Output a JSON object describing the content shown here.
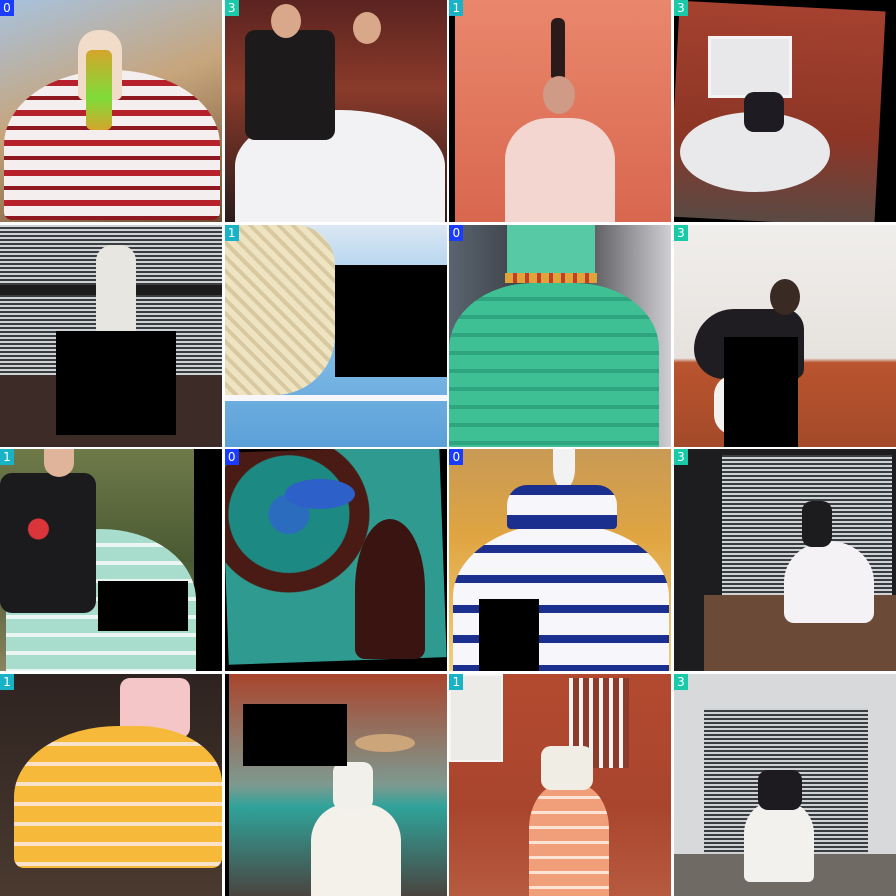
{
  "label_colors": {
    "0": "#1a3cff",
    "1": "#19b3c8",
    "3": "#19c9a8"
  },
  "tiles": [
    {
      "label": "0",
      "scene": "Dancer in red and white pollera with gold jewelry in front of a stone tower",
      "bg": "#c9a27a",
      "outfit": "#b7212b",
      "skirt": "#f4eeee",
      "mask": null
    },
    {
      "label": "3",
      "scene": "Group of dancers in white skirts and black shawls on stage",
      "bg": "#6b2a22",
      "outfit": "#1d1a1c",
      "skirt": "#f2f2f4",
      "mask": null
    },
    {
      "label": "1",
      "scene": "Dancer balancing a bottle on her head, white lace dress, pink background",
      "bg": "#e27a60",
      "outfit": "#f3d6d0",
      "skirt": "#f1e3e0",
      "mask": null
    },
    {
      "label": "3",
      "scene": "Blurred twirling dancer in white skirt against red brick wall",
      "bg": "#9d3b2c",
      "outfit": "#1e1c22",
      "skirt": "#e9e9ec",
      "mask": null
    },
    {
      "label": "",
      "scene": "Dancer indoors behind striped window blinds",
      "bg": "#3a3b3c",
      "outfit": "#f0efe8",
      "skirt": "#e8e6e0",
      "mask": "bottom-center"
    },
    {
      "label": "1",
      "scene": "Close-up of light blue skirt with cream fringed shawl",
      "bg": "#7fb6e2",
      "outfit": "#efe4c2",
      "skirt": "#8ec4ec",
      "mask": "top-right"
    },
    {
      "label": "0",
      "scene": "Green lace dress with striped belt on display",
      "bg": "#2f2f34",
      "outfit": "#3fbf94",
      "skirt": "#39b88d",
      "mask": null
    },
    {
      "label": "3",
      "scene": "Dancer with flower in hair and black shawl, white wall",
      "bg": "#ece9e6",
      "outfit": "#1f1d22",
      "skirt": "#f4f2f0",
      "mask": "bottom-center"
    },
    {
      "label": "1",
      "scene": "Dancer with embroidered black shawl and mint green skirt in garden",
      "bg": "#5a6b3a",
      "outfit": "#1b1a1c",
      "skirt": "#a8dccd",
      "mask": "bottom-right"
    },
    {
      "label": "0",
      "scene": "Heavily color-distorted abstract image of a dress",
      "bg": "#1c8a82",
      "outfit": "#4a1a14",
      "skirt": "#2c6cbe",
      "mask": null
    },
    {
      "label": "0",
      "scene": "Mannequin in white and navy blue dress",
      "bg": "#e0a542",
      "outfit": "#1a2f8e",
      "skirt": "#f7f7fb",
      "mask": "bottom-left"
    },
    {
      "label": "3",
      "scene": "Dancer in white skirt in doorway with black gate",
      "bg": "#2c2c2e",
      "outfit": "#1c1b1e",
      "skirt": "#f4f2f4",
      "mask": null
    },
    {
      "label": "1",
      "scene": "Yellow ruffled skirt with white lace trim",
      "bg": "#3a2a22",
      "outfit": "#f4c6c8",
      "skirt": "#f7b93a",
      "mask": null
    },
    {
      "label": "",
      "scene": "Dancer holding basket on head in courtyard",
      "bg": "#2fa39a",
      "outfit": "#f1f0ea",
      "skirt": "#f3f1ea",
      "mask": "top-left"
    },
    {
      "label": "1",
      "scene": "Dancer in white blouse and salmon ruffled skirt on terrace",
      "bg": "#a9452d",
      "outfit": "#f0ede4",
      "skirt": "#f19f7a",
      "mask": null
    },
    {
      "label": "3",
      "scene": "Dancer in black shawl and white skirt in front of gate",
      "bg": "#d8d9da",
      "outfit": "#1d1b1f",
      "skirt": "#f2f1ee",
      "mask": null
    }
  ]
}
